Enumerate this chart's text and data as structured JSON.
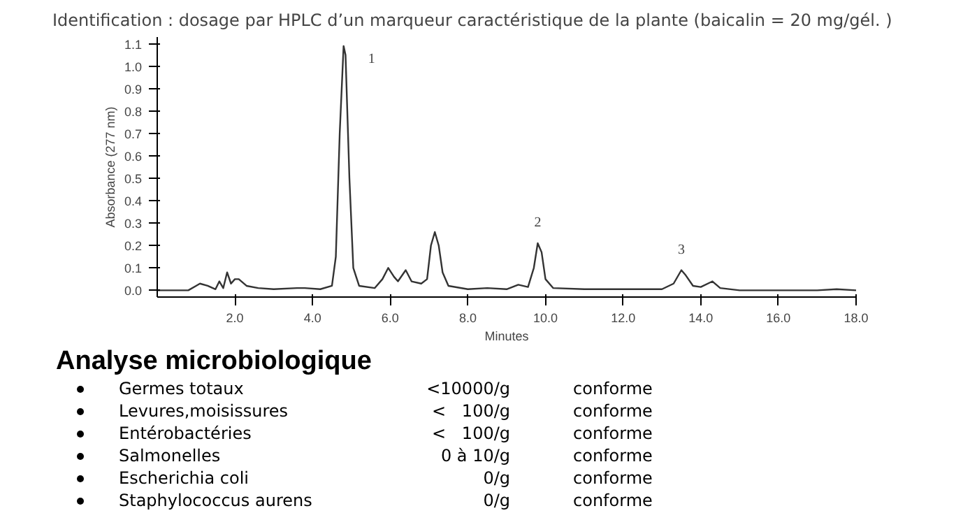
{
  "chart_data": {
    "type": "line",
    "title": "Identification : dosage par HPLC d’un marqueur caractéristique de la plante (baicalin = 20 mg/gél. )",
    "xlabel": "Minutes",
    "ylabel": "Absorbance (277 nm)",
    "xlim": [
      0,
      18
    ],
    "ylim": [
      -0.03,
      1.13
    ],
    "xticks": [
      {
        "value": 2,
        "label": "2.0"
      },
      {
        "value": 4,
        "label": "4.0"
      },
      {
        "value": 6,
        "label": "6.0"
      },
      {
        "value": 8,
        "label": "8.0"
      },
      {
        "value": 10,
        "label": "10.0"
      },
      {
        "value": 12,
        "label": "12.0"
      },
      {
        "value": 14,
        "label": "14.0"
      },
      {
        "value": 16,
        "label": "16.0"
      },
      {
        "value": 18,
        "label": "18.0"
      }
    ],
    "yticks": [
      {
        "value": 0,
        "label": "0.0"
      },
      {
        "value": 0.1,
        "label": "0.1"
      },
      {
        "value": 0.2,
        "label": "0.2"
      },
      {
        "value": 0.3,
        "label": "0.3"
      },
      {
        "value": 0.4,
        "label": "0.4"
      },
      {
        "value": 0.5,
        "label": "0.5"
      },
      {
        "value": 0.6,
        "label": "0.6"
      },
      {
        "value": 0.7,
        "label": "0.7"
      },
      {
        "value": 0.8,
        "label": "0.8"
      },
      {
        "value": 0.9,
        "label": "0.9"
      },
      {
        "value": 1,
        "label": "1.0"
      },
      {
        "value": 1.1,
        "label": "1.1"
      }
    ],
    "grid": false,
    "series": [
      {
        "color": "#333333",
        "x": [
          0,
          0.8,
          1.0,
          1.1,
          1.3,
          1.5,
          1.6,
          1.7,
          1.8,
          1.9,
          2.0,
          2.1,
          2.3,
          2.6,
          3.0,
          3.6,
          3.8,
          4.2,
          4.5,
          4.6,
          4.7,
          4.8,
          4.85,
          4.95,
          5.05,
          5.2,
          5.6,
          5.8,
          5.95,
          6.1,
          6.2,
          6.4,
          6.55,
          6.8,
          6.95,
          7.05,
          7.15,
          7.25,
          7.35,
          7.5,
          8.0,
          8.5,
          9.0,
          9.3,
          9.55,
          9.7,
          9.8,
          9.9,
          10.0,
          10.2,
          11.0,
          12.0,
          13.0,
          13.3,
          13.5,
          13.6,
          13.8,
          14.0,
          14.3,
          14.5,
          15.0,
          17.0,
          17.5,
          18.0
        ],
        "values": [
          0,
          0,
          0.02,
          0.03,
          0.02,
          0.005,
          0.04,
          0.01,
          0.08,
          0.03,
          0.05,
          0.05,
          0.02,
          0.01,
          0.005,
          0.01,
          0.01,
          0.005,
          0.02,
          0.15,
          0.7,
          1.09,
          1.05,
          0.5,
          0.1,
          0.02,
          0.01,
          0.05,
          0.1,
          0.06,
          0.04,
          0.09,
          0.04,
          0.03,
          0.05,
          0.2,
          0.26,
          0.2,
          0.08,
          0.02,
          0.005,
          0.01,
          0.005,
          0.025,
          0.015,
          0.1,
          0.21,
          0.17,
          0.05,
          0.01,
          0.005,
          0.005,
          0.005,
          0.03,
          0.09,
          0.07,
          0.02,
          0.015,
          0.04,
          0.01,
          0,
          0,
          0.005,
          0
        ]
      }
    ],
    "annotations": [
      {
        "text": "1",
        "x": 4.8,
        "y": 1.09
      },
      {
        "text": "2",
        "x": 9.8,
        "y": 0.21
      },
      {
        "text": "3",
        "x": 13.5,
        "y": 0.09
      },
      "Analyse microbiologique",
      "Germes totaux",
      "<10000/g",
      "conforme",
      "Levures,moisissures",
      "<   100/g",
      "conforme",
      "Entérobactéries",
      "<   100/g",
      "conforme",
      "Salmonelles",
      "0 à 10/g",
      "conforme",
      "Escherichia coli",
      "0/g",
      "conforme",
      "Staphylococcus aurens",
      "0/g",
      "conforme"
    ]
  }
}
